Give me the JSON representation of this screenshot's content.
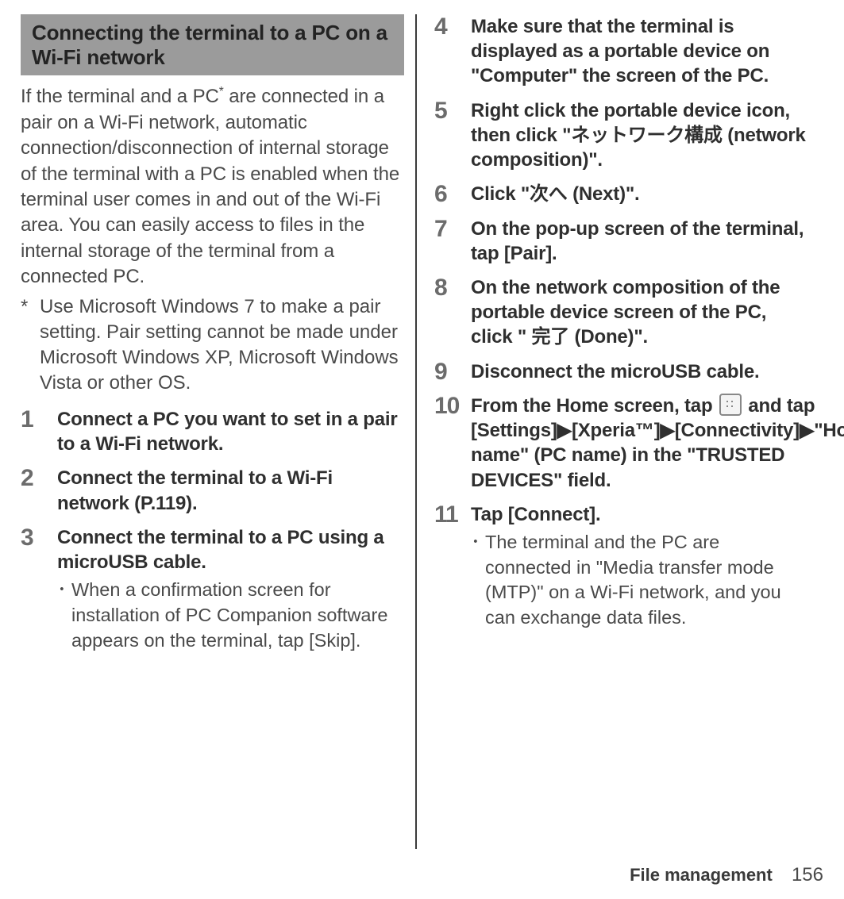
{
  "header": "Connecting the terminal to a PC on a Wi-Fi network",
  "intro_html": "If the terminal and a PC<sup>*</sup> are connected in a pair on a Wi-Fi network, automatic connection/disconnection of internal storage of the terminal with a PC is enabled when the terminal user comes in and out of the Wi-Fi area. You can easily access to files in the internal storage of the terminal from a connected PC.",
  "footnote": {
    "mark": "*",
    "text": "Use Microsoft Windows 7 to make a pair setting. Pair setting cannot be made under Microsoft Windows XP, Microsoft Windows Vista or other OS."
  },
  "steps_left": [
    {
      "num": "1",
      "title": "Connect a PC you want to set in a pair to a Wi-Fi network."
    },
    {
      "num": "2",
      "title": "Connect the terminal to a Wi-Fi network (P.119)."
    },
    {
      "num": "3",
      "title": "Connect the terminal to a PC using a microUSB cable.",
      "sub": "When a confirmation screen for installation of PC Companion software appears on the terminal, tap [Skip]."
    }
  ],
  "steps_right": [
    {
      "num": "4",
      "title": "Make sure that the terminal is displayed as a portable device on \"Computer\" the screen of the PC."
    },
    {
      "num": "5",
      "title": "Right click the portable device icon, then click \"ネットワーク構成 (network composition)\"."
    },
    {
      "num": "6",
      "title": "Click \"次へ (Next)\"."
    },
    {
      "num": "7",
      "title": "On the pop-up screen of the terminal, tap [Pair]."
    },
    {
      "num": "8",
      "title": "On the network composition of the portable device screen of the PC, click \" 完了 (Done)\"."
    },
    {
      "num": "9",
      "title": "Disconnect the microUSB cable."
    },
    {
      "num": "10",
      "title_html": "From the Home screen, tap <span class=\"apps-icon\" data-name=\"apps-grid-icon\" data-interactable=\"false\"></span> and tap [Settings]<span class=\"arrow\">▶</span>[Xperia™]<span class=\"arrow\">▶</span>[Connectivity]<span class=\"arrow\">▶</span>\"Host name\" (PC name) in the \"TRUSTED DEVICES\" field."
    },
    {
      "num": "11",
      "title": "Tap [Connect].",
      "sub": "The terminal and the PC are connected in \"Media transfer mode (MTP)\" on a Wi-Fi network, and you can exchange data files."
    }
  ],
  "footer": {
    "section": "File management",
    "page": "156"
  }
}
